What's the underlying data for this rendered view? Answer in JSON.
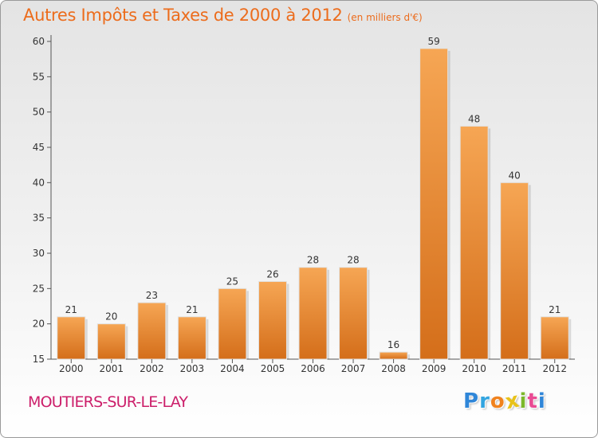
{
  "header": {
    "title": "Autres Impôts et Taxes de 2000 à 2012",
    "subtitle": "(en milliers d'€)"
  },
  "footer": {
    "place": "MOUTIERS-SUR-LE-LAY",
    "logo": [
      "P",
      "r",
      "o",
      "x",
      "i",
      "t",
      "i"
    ]
  },
  "colors": {
    "accent_title": "#ec6c1c",
    "place": "#cc1e6a",
    "bar_light": "#f6a654",
    "bar_dark": "#d46e1a",
    "axis": "#555555"
  },
  "chart_data": {
    "type": "bar",
    "categories": [
      "2000",
      "2001",
      "2002",
      "2003",
      "2004",
      "2005",
      "2006",
      "2007",
      "2008",
      "2009",
      "2010",
      "2011",
      "2012"
    ],
    "values": [
      21,
      20,
      23,
      21,
      25,
      26,
      28,
      28,
      16,
      59,
      48,
      40,
      21
    ],
    "ylim": [
      15,
      60
    ],
    "yticks": [
      15,
      20,
      25,
      30,
      35,
      40,
      45,
      50,
      55,
      60
    ],
    "grid": false,
    "xlabel": "",
    "ylabel": ""
  }
}
